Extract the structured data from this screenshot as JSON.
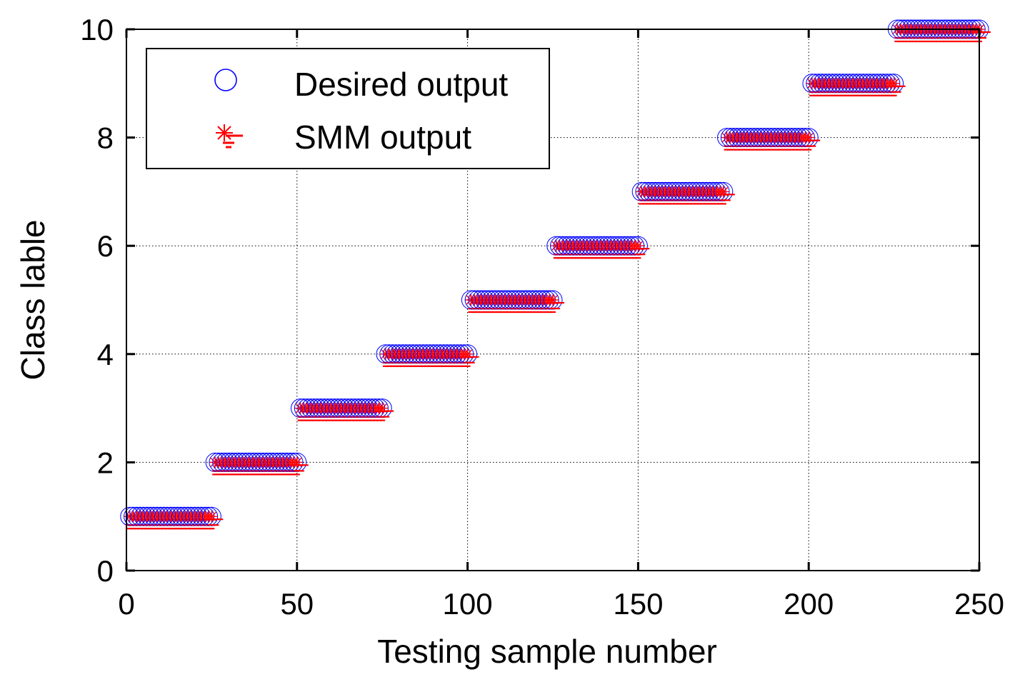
{
  "chart_data": {
    "type": "scatter",
    "title": "",
    "xlabel": "Testing sample number",
    "ylabel": "Class lable",
    "xlim": [
      0,
      250
    ],
    "ylim": [
      0,
      10
    ],
    "xticks": [
      0,
      50,
      100,
      150,
      200,
      250
    ],
    "yticks": [
      0,
      2,
      4,
      6,
      8,
      10
    ],
    "xtick_labels": [
      "0",
      "50",
      "100",
      "150",
      "200",
      "250"
    ],
    "ytick_labels": [
      "0",
      "2",
      "4",
      "6",
      "8",
      "10"
    ],
    "grid": true,
    "legend_position": "top-left",
    "samples_per_class": 25,
    "num_classes": 10,
    "series": [
      {
        "name": "Desired output",
        "marker": "circle",
        "color": "#0000ff",
        "description": "Class label 1 for samples 1-25, 2 for 26-50, ..., 10 for 226-250"
      },
      {
        "name": "SMM output",
        "marker": "asterisk-dash",
        "color": "#ff0000",
        "description": "Matches the desired class label for every sample"
      }
    ]
  },
  "legend": {
    "items": [
      {
        "label": "Desired output"
      },
      {
        "label": "SMM output"
      }
    ]
  }
}
